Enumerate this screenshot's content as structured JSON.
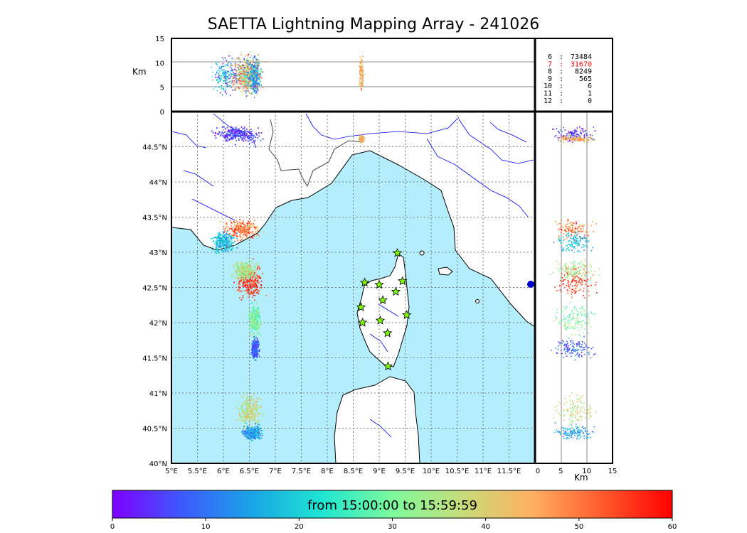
{
  "title": "SAETTA Lightning Mapping Array - 241026",
  "time_range_label": "from 15:00:00 to 15:59:59",
  "alt_axis": {
    "unit": "Km",
    "ticks": [
      "0",
      "5",
      "10",
      "15"
    ]
  },
  "lon_axis": {
    "ticks": [
      "5°E",
      "5.5°E",
      "6°E",
      "6.5°E",
      "7°E",
      "7.5°E",
      "8°E",
      "8.5°E",
      "9°E",
      "9.5°E",
      "10°E",
      "10.5°E",
      "11°E",
      "11.5°E"
    ]
  },
  "lat_axis": {
    "ticks": [
      "40°N",
      "40.5°N",
      "41°N",
      "41.5°N",
      "42°N",
      "42.5°N",
      "43°N",
      "43.5°N",
      "44°N",
      "44.5°N"
    ]
  },
  "station_counts": [
    {
      "stations": "6",
      "sources": "73484",
      "highlight": false
    },
    {
      "stations": "7",
      "sources": "31670",
      "highlight": true
    },
    {
      "stations": "8",
      "sources": "8249",
      "highlight": false
    },
    {
      "stations": "9",
      "sources": "565",
      "highlight": false
    },
    {
      "stations": "10",
      "sources": "6",
      "highlight": false
    },
    {
      "stations": "11",
      "sources": "1",
      "highlight": false
    },
    {
      "stations": "12",
      "sources": "0",
      "highlight": false
    }
  ],
  "colorbar": {
    "ticks": [
      "0",
      "10",
      "20",
      "30",
      "40",
      "50",
      "60"
    ],
    "min": 0,
    "max": 60,
    "colors": [
      "#7f00ff",
      "#3d5afe",
      "#19a5e6",
      "#1ee6d2",
      "#7dfa9c",
      "#c8dc7a",
      "#ffb060",
      "#ff5a2c",
      "#ff0000"
    ]
  },
  "colors": {
    "sea": "#b4eefd",
    "land": "#ffffff",
    "river": "#0000ff",
    "border": "#444444",
    "station": "#7fff00",
    "highlight": "#ff0000"
  },
  "stations": [
    {
      "lon": 9.35,
      "lat": 42.99
    },
    {
      "lon": 8.72,
      "lat": 42.57
    },
    {
      "lon": 9.0,
      "lat": 42.54
    },
    {
      "lon": 9.45,
      "lat": 42.59
    },
    {
      "lon": 9.32,
      "lat": 42.44
    },
    {
      "lon": 9.07,
      "lat": 42.32
    },
    {
      "lon": 8.65,
      "lat": 42.22
    },
    {
      "lon": 9.53,
      "lat": 42.11
    },
    {
      "lon": 9.02,
      "lat": 42.03
    },
    {
      "lon": 8.68,
      "lat": 42.0
    },
    {
      "lon": 9.16,
      "lat": 41.85
    },
    {
      "lon": 9.17,
      "lat": 41.38
    }
  ],
  "lightning_sources": [
    {
      "lon": 6.25,
      "lat": 44.68,
      "spread_lon": 0.6,
      "spread_lat": 0.15,
      "time": 5
    },
    {
      "lon": 6.35,
      "lat": 43.33,
      "spread_lon": 0.5,
      "spread_lat": 0.18,
      "time": 50
    },
    {
      "lon": 6.0,
      "lat": 43.15,
      "spread_lon": 0.3,
      "spread_lat": 0.2,
      "time": 18
    },
    {
      "lon": 6.5,
      "lat": 42.6,
      "spread_lon": 0.35,
      "spread_lat": 0.35,
      "time": 55
    },
    {
      "lon": 6.4,
      "lat": 42.75,
      "spread_lon": 0.3,
      "spread_lat": 0.2,
      "time": 35
    },
    {
      "lon": 6.6,
      "lat": 42.05,
      "spread_lon": 0.15,
      "spread_lat": 0.3,
      "time": 30
    },
    {
      "lon": 6.6,
      "lat": 41.65,
      "spread_lon": 0.1,
      "spread_lat": 0.2,
      "time": 8
    },
    {
      "lon": 6.5,
      "lat": 40.75,
      "spread_lon": 0.3,
      "spread_lat": 0.3,
      "time": 38
    },
    {
      "lon": 6.55,
      "lat": 40.45,
      "spread_lon": 0.25,
      "spread_lat": 0.15,
      "time": 15
    },
    {
      "lon": 8.65,
      "lat": 44.62,
      "spread_lon": 0.06,
      "spread_lat": 0.06,
      "time": 45
    }
  ]
}
